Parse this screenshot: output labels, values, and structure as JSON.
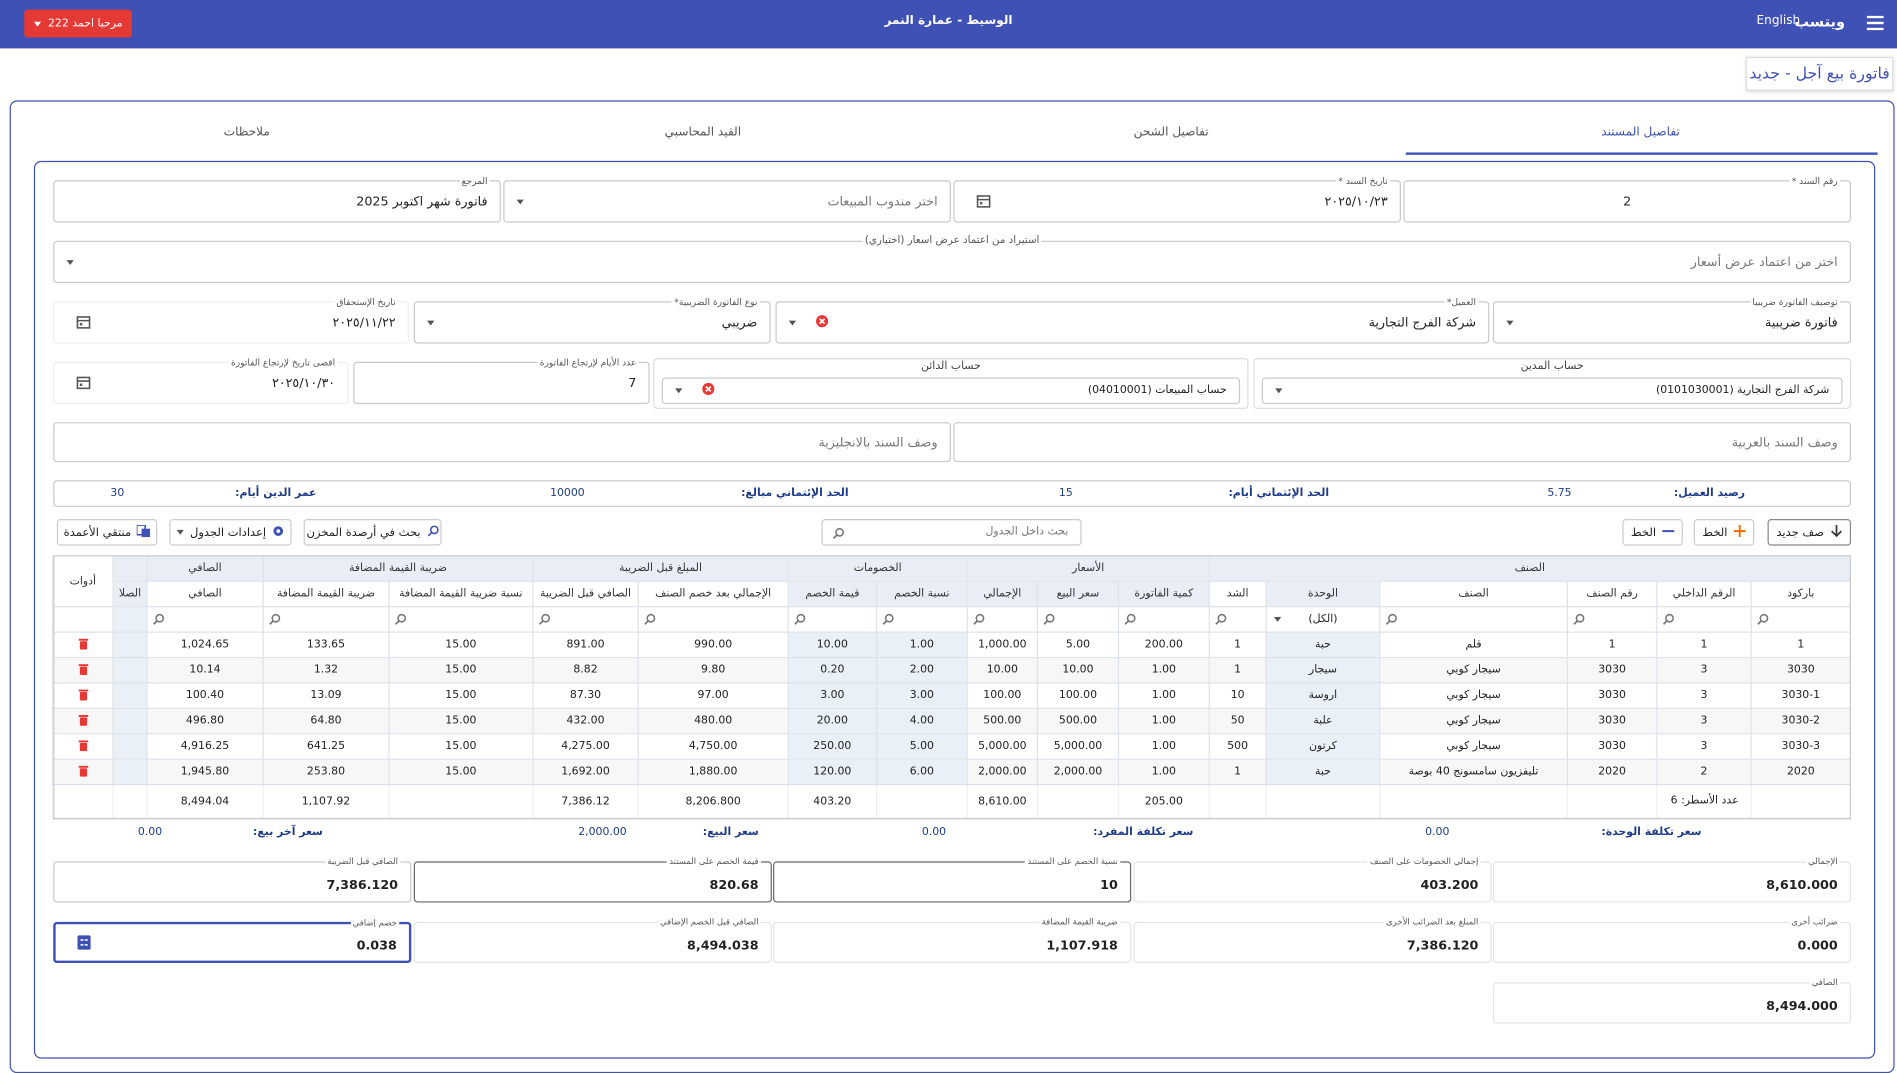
{
  "header": {
    "brand": "ويتسب",
    "language": "English",
    "branch": "الوسيط - عمارة النمر",
    "user": "مرحبا احمد 222"
  },
  "page_title": "فاتورة بيع آجل - جديد",
  "tabs": [
    "تفاصيل المستند",
    "تفاصيل الشحن",
    "القيد المحاسبي",
    "ملاحظات"
  ],
  "form": {
    "fields": [
      {
        "label": "رقم السند *",
        "value": 2
      },
      {
        "label": "تاريخ السند *",
        "value": "٢٠٢٥/١٠/٢٣"
      },
      {
        "placeholder": "اختر مندوب المبيعات"
      },
      {
        "label": "المرجع",
        "value": "فاتورة شهر اكتوبر 2025"
      },
      {
        "label": "استيراد من اعتماد عرض اسعار (اختياري)",
        "placeholder": "اختر من اعتماد عرض أسعار"
      },
      {
        "label": "توصيف الفاتورة ضريبيا",
        "value": "فاتورة ضريبية"
      },
      {
        "label": "العميل*",
        "value": "شركة الفرج التجارية"
      },
      {
        "label": "نوع الفاتورة الضريبية*",
        "value": "ضريبي"
      },
      {
        "label": "تاريخ الإستحقاق",
        "value": "٢٠٢٥/١١/٢٢"
      },
      {
        "label": "حساب المدين",
        "value": "شركة الفرج التجارية (0101030001)"
      },
      {
        "label": "حساب الدائن",
        "value": "حساب المبيعات (04010001)"
      },
      {
        "label": "عدد الأيام لإرتجاع الفاتورة",
        "value": 7
      },
      {
        "label": "اقصى تاريخ لإرتجاع الفاتورة",
        "value": "٢٠٢٥/١٠/٣٠"
      },
      {
        "placeholder": "وصف السند بالعربية"
      },
      {
        "placeholder": "وصف السند بالانجليزية"
      }
    ]
  },
  "info": [
    {
      "label": "رصيد العميل:",
      "value": 5.75
    },
    {
      "label": "الحد الإئتماني أيام:",
      "value": 15
    },
    {
      "label": "الحد الإئتماني مبالغ:",
      "value": 10000
    },
    {
      "label": "عمر الدين أيام:",
      "value": 30
    }
  ],
  "toolbar": {
    "new_row": "صف جديد",
    "add_line": "الخط",
    "remove_line": "الخط",
    "search_placeholder": "بحث داخل الجدول",
    "stock_search": "بحث في أرصدة المخزن",
    "table_settings": "إعدادات الجدول",
    "column_picker": "منتقي الأعمدة"
  },
  "table": {
    "groups": [
      {
        "label": "الصنف",
        "columns": [
          "باركود",
          "الرقم الداخلي",
          "رقم الصنف",
          "الصنف",
          "الوحدة",
          "الشد"
        ]
      },
      {
        "label": "الأسعار",
        "columns": [
          "كمية الفاتورة",
          "سعر البيع",
          "الإجمالي"
        ]
      },
      {
        "label": "الخصومات",
        "columns": [
          "نسبة الخصم",
          "قيمة الخصم"
        ]
      },
      {
        "label": "المبلغ قبل الضريبة",
        "columns": [
          "الإجمالي بعد خصم الصنف",
          "الصافي قبل الضريبة"
        ]
      },
      {
        "label": "ضريبة القيمة المضافة",
        "columns": [
          "نسبة ضريبة القيمة المضافة",
          "ضريبة القيمة المضافة"
        ]
      },
      {
        "label": "الصافي",
        "columns": [
          "الصافي"
        ]
      },
      {
        "columns": [
          "الصلا"
        ]
      }
    ],
    "tools_label": "أدوات",
    "unit_filter": "(الكل)",
    "rows": [
      [
        "1",
        "1",
        "1",
        "قلم",
        "حبة",
        "1",
        "200.00",
        "5.00",
        "1,000.00",
        "1.00",
        "10.00",
        "990.00",
        "891.00",
        "15.00",
        "133.65",
        "1,024.65"
      ],
      [
        "3030",
        "3",
        "3030",
        "سيجار كوبي",
        "سيجار",
        "1",
        "1.00",
        "10.00",
        "10.00",
        "2.00",
        "0.20",
        "9.80",
        "8.82",
        "15.00",
        "1.32",
        "10.14"
      ],
      [
        "3030-1",
        "3",
        "3030",
        "سيجار كوبي",
        "اروسة",
        "10",
        "1.00",
        "100.00",
        "100.00",
        "3.00",
        "3.00",
        "97.00",
        "87.30",
        "15.00",
        "13.09",
        "100.40"
      ],
      [
        "3030-2",
        "3",
        "3030",
        "سيجار كوبي",
        "علبة",
        "50",
        "1.00",
        "500.00",
        "500.00",
        "4.00",
        "20.00",
        "480.00",
        "432.00",
        "15.00",
        "64.80",
        "496.80"
      ],
      [
        "3030-3",
        "3",
        "3030",
        "سيجار كوبي",
        "كرتون",
        "500",
        "1.00",
        "5,000.00",
        "5,000.00",
        "5.00",
        "250.00",
        "4,750.00",
        "4,275.00",
        "15.00",
        "641.25",
        "4,916.25"
      ],
      [
        "2020",
        "2",
        "2020",
        "تليفزيون سامسونج 40 بوصة",
        "حبة",
        "1",
        "1.00",
        "2,000.00",
        "2,000.00",
        "6.00",
        "120.00",
        "1,880.00",
        "1,692.00",
        "15.00",
        "253.80",
        "1,945.80"
      ]
    ],
    "row_count_label": "عدد الأسطر: 6",
    "totals": [
      null,
      null,
      null,
      null,
      null,
      null,
      "205.00",
      null,
      "8,610.00",
      null,
      "403.20",
      "8,206.800",
      "7,386.12",
      null,
      "1,107.92",
      "8,494.04"
    ]
  },
  "costs": [
    {
      "label": "سعر تكلفة الوحدة:",
      "value": "0.00"
    },
    {
      "label": "سعر تكلفة المفرد:",
      "value": "0.00"
    },
    {
      "label": "سعر البيع:",
      "value": "2,000.00"
    },
    {
      "label": "سعر آخر بيع:",
      "value": "0.00"
    }
  ],
  "summary": [
    [
      {
        "label": "الإجمالي",
        "value": "8,610.000"
      },
      {
        "label": "إجمالي الخصومات على الصنف",
        "value": "403.200"
      },
      {
        "label": "نسبة الخصم على المستند",
        "value": 10
      },
      {
        "label": "قيمة الخصم على المستند",
        "value": "820.68"
      },
      {
        "label": "الصافي قبل الضريبة",
        "value": "7,386.120"
      }
    ],
    [
      {
        "label": "ضرائب أخرى",
        "value": "0.000"
      },
      {
        "label": "المبلغ بعد الضرائب الأخرى",
        "value": "7,386.120"
      },
      {
        "label": "ضريبة القيمة المضافة",
        "value": "1,107.918"
      },
      {
        "label": "الصافي قبل الخصم الإضافي",
        "value": "8,494.038"
      },
      {
        "label": "خصم إضافي",
        "value": "0.038"
      }
    ],
    [
      {
        "label": "الصافي",
        "value": "8,494.000"
      }
    ]
  ]
}
